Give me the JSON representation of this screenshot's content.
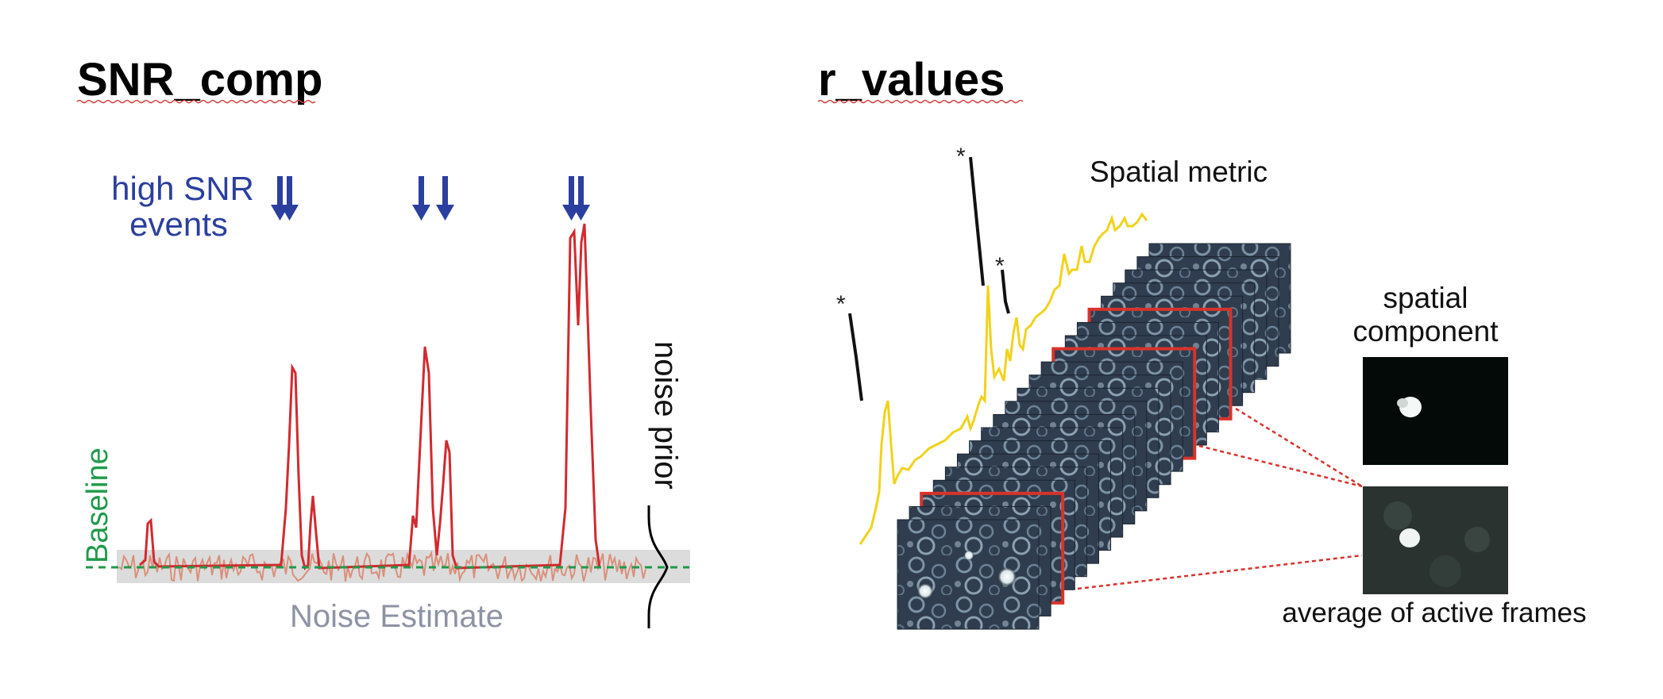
{
  "left_panel": {
    "title": "SNR_comp",
    "events_label_line1": "high SNR",
    "events_label_line2": "events",
    "baseline_label": "Baseline",
    "noise_estimate_label": "Noise Estimate",
    "noise_prior_label": "noise prior",
    "colors": {
      "trace": "#d12a2f",
      "noise": "#d9907a",
      "baseline": "#1f9a4a",
      "arrows": "#2b3f9e",
      "noise_band": "#dcdcdc"
    }
  },
  "right_panel": {
    "title": "r_values",
    "spatial_metric_label": "Spatial metric",
    "spatial_component_line1": "spatial",
    "spatial_component_line2": "component",
    "average_label": "average of active frames",
    "peak_marker": "*",
    "colors": {
      "trace": "#f2d21b",
      "peaks": "#111111",
      "highlight_frame": "#d7332b",
      "link": "#d7332b"
    }
  }
}
